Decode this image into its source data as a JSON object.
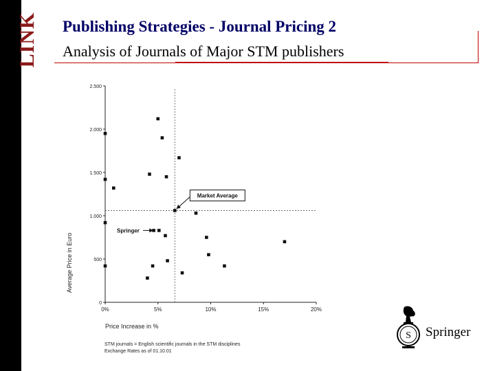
{
  "logo_text": "LINK",
  "header": {
    "title": "Publishing Strategies - Journal Pricing 2",
    "subtitle": "Analysis of Journals of Major STM publishers"
  },
  "notes": [
    "STM journals = English scientific journals in the STM disciplines",
    "Exchange Rates as of 01.10.01"
  ],
  "brand": "Springer",
  "colors": {
    "accent": "#c00000",
    "title": "#000066",
    "logo": "#8b1a1a"
  },
  "chart_data": {
    "type": "scatter",
    "xlabel": "Price Increase in %",
    "ylabel": "Average Price in Euro",
    "xlim": [
      0,
      20
    ],
    "ylim": [
      0,
      2500
    ],
    "x_ticks": [
      0,
      5,
      10,
      15,
      20
    ],
    "x_tick_labels": [
      "0%",
      "5%",
      "10%",
      "15%",
      "20%"
    ],
    "y_ticks": [
      0,
      500,
      1000,
      1500,
      2000,
      2500
    ],
    "y_tick_labels": [
      "0",
      "500",
      "1.000",
      "1.500",
      "2.000",
      "2.500"
    ],
    "market_average": {
      "x": 6.6,
      "y": 1060
    },
    "annotations": [
      {
        "text": "Market Average",
        "target": [
          6.6,
          1060
        ]
      },
      {
        "text": "Springer",
        "target": [
          4.9,
          830
        ]
      }
    ],
    "points": [
      [
        5.0,
        2120
      ],
      [
        5.4,
        1900
      ],
      [
        7.0,
        1670
      ],
      [
        0.0,
        1950
      ],
      [
        4.2,
        1480
      ],
      [
        5.8,
        1450
      ],
      [
        0.0,
        1420
      ],
      [
        0.8,
        1320
      ],
      [
        6.6,
        1060
      ],
      [
        8.6,
        1030
      ],
      [
        0.0,
        920
      ],
      [
        4.6,
        830
      ],
      [
        5.1,
        830
      ],
      [
        5.7,
        770
      ],
      [
        9.6,
        750
      ],
      [
        17.0,
        700
      ],
      [
        9.8,
        550
      ],
      [
        5.9,
        480
      ],
      [
        4.5,
        420
      ],
      [
        11.3,
        420
      ],
      [
        0.0,
        420
      ],
      [
        7.3,
        340
      ],
      [
        4.0,
        280
      ]
    ]
  }
}
